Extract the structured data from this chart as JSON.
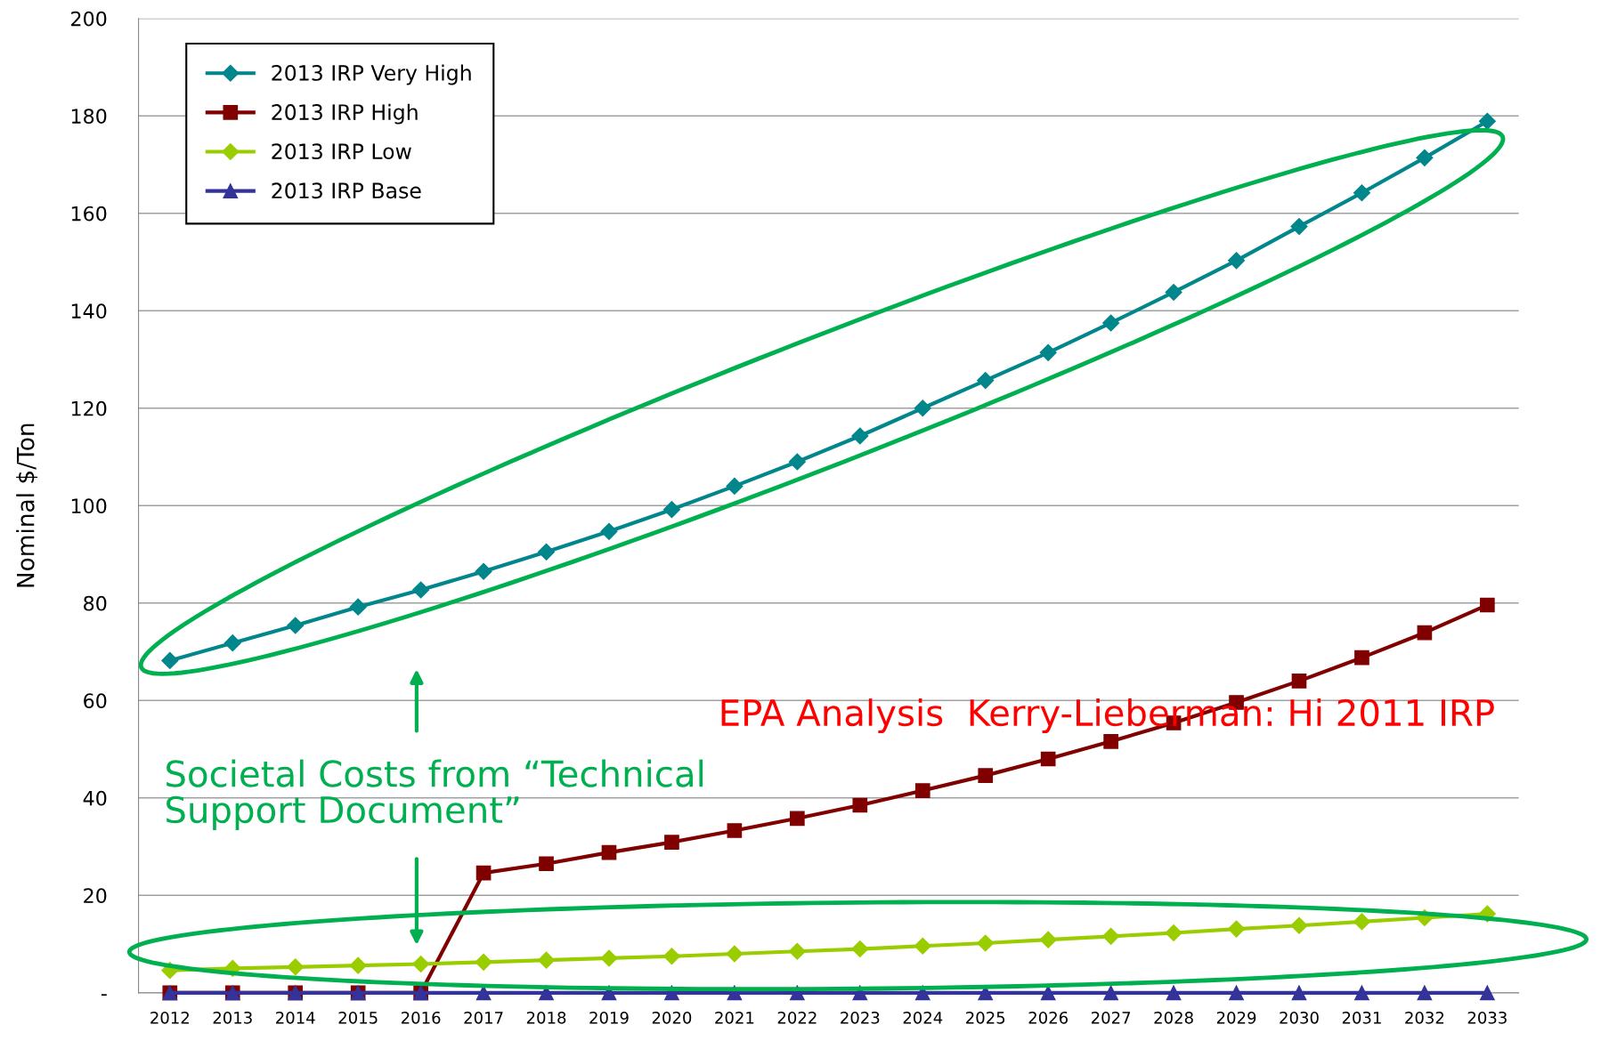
{
  "chart_data": {
    "type": "line",
    "ylabel": "Nominal $/Ton",
    "categories": [
      "2012",
      "2013",
      "2014",
      "2015",
      "2016",
      "2017",
      "2018",
      "2019",
      "2020",
      "2021",
      "2022",
      "2023",
      "2024",
      "2025",
      "2026",
      "2027",
      "2028",
      "2029",
      "2030",
      "2031",
      "2032",
      "2033"
    ],
    "series": [
      {
        "name": "2013 IRP Very High",
        "color": "#00868b",
        "marker": "diamond",
        "values": [
          68.2,
          71.8,
          75.4,
          79.2,
          82.7,
          86.5,
          90.5,
          94.7,
          99.2,
          104,
          109,
          114.3,
          120,
          125.7,
          131.4,
          137.5,
          143.8,
          150.3,
          157.3,
          164.2,
          171.4,
          178.9
        ]
      },
      {
        "name": "2013 IRP High",
        "color": "#800000",
        "marker": "square",
        "values": [
          0,
          0,
          0,
          0,
          0,
          24.6,
          26.5,
          28.8,
          30.9,
          33.3,
          35.8,
          38.5,
          41.5,
          44.6,
          48,
          51.6,
          55.4,
          59.6,
          64,
          68.8,
          73.9,
          79.6
        ]
      },
      {
        "name": "2013 IRP Low",
        "color": "#9acd00",
        "marker": "diamond",
        "values": [
          4.6,
          5.0,
          5.3,
          5.6,
          5.9,
          6.3,
          6.7,
          7.1,
          7.5,
          8.0,
          8.5,
          9.0,
          9.6,
          10.2,
          10.9,
          11.6,
          12.3,
          13.1,
          13.8,
          14.6,
          15.4,
          16.2
        ]
      },
      {
        "name": "2013 IRP Base",
        "color": "#333399",
        "marker": "triangle",
        "values": [
          0,
          0,
          0,
          0,
          0,
          0,
          0,
          0,
          0,
          0,
          0,
          0,
          0,
          0,
          0,
          0,
          0,
          0,
          0,
          0,
          0,
          0
        ]
      }
    ],
    "ylim": [
      0,
      200
    ],
    "yticks": [
      {
        "value": 0,
        "label": "-"
      },
      20,
      40,
      60,
      80,
      100,
      120,
      140,
      160,
      180,
      200
    ],
    "grid": "y",
    "legend": "top left",
    "annotations": [
      "EPA Analysis  Kerry-Lieberman: Hi 2011 IRP",
      "Societal Costs from “Technical\nSupport Document”"
    ]
  }
}
